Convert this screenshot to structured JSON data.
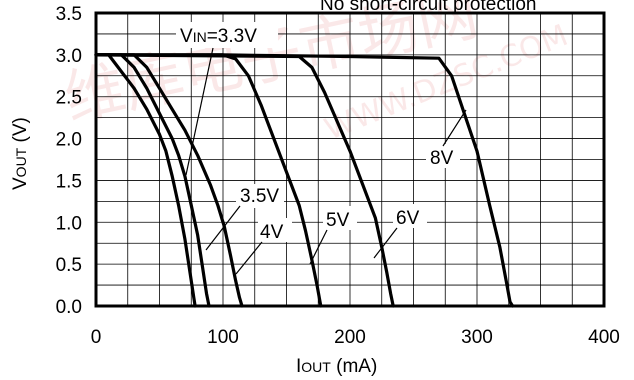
{
  "chart_data": {
    "type": "line",
    "annotation": "No short-circuit protection",
    "xlim": [
      0,
      400
    ],
    "ylim": [
      0,
      3.5
    ],
    "xticks": [
      0,
      100,
      200,
      300,
      400
    ],
    "xtick_labels": [
      "0",
      "100",
      "200",
      "300",
      "400"
    ],
    "yticks": [
      0,
      0.5,
      1.0,
      1.5,
      2.0,
      2.5,
      3.0,
      3.5
    ],
    "ytick_labels": [
      "0.0",
      "0.5",
      "1.0",
      "1.5",
      "2.0",
      "2.5",
      "3.0",
      "3.5"
    ],
    "xlabel": {
      "main": "I",
      "sub": "OUT",
      "rest": " (mA)"
    },
    "ylabel": {
      "main": "V",
      "sub": "OUT",
      "rest": " (V)"
    },
    "grid": true,
    "legend": "none",
    "series": [
      {
        "name": "VIN=3.3V",
        "label_parts": {
          "main": "V",
          "sub": "IN",
          "rest": "=3.3V"
        },
        "x": [
          0,
          10,
          20,
          30,
          40,
          50,
          55,
          60,
          65,
          70,
          74,
          77,
          78
        ],
        "y": [
          3.0,
          3.0,
          2.8,
          2.6,
          2.35,
          2.05,
          1.85,
          1.55,
          1.2,
          0.8,
          0.4,
          0.1,
          0.0
        ]
      },
      {
        "name": "3.5V",
        "x": [
          0,
          20,
          30,
          40,
          50,
          60,
          65,
          70,
          75,
          80,
          84,
          87,
          89
        ],
        "y": [
          3.0,
          3.0,
          2.85,
          2.6,
          2.3,
          2.0,
          1.8,
          1.55,
          1.2,
          0.85,
          0.45,
          0.15,
          0.0
        ]
      },
      {
        "name": "4V",
        "x": [
          0,
          30,
          40,
          50,
          60,
          70,
          80,
          90,
          96,
          101,
          106,
          110,
          113,
          115
        ],
        "y": [
          3.0,
          3.0,
          2.85,
          2.6,
          2.35,
          2.1,
          1.8,
          1.45,
          1.2,
          0.95,
          0.6,
          0.3,
          0.1,
          0.0
        ]
      },
      {
        "name": "5V",
        "x": [
          0,
          100,
          110,
          120,
          130,
          140,
          150,
          160,
          165,
          170,
          174,
          177
        ],
        "y": [
          3.0,
          3.0,
          2.95,
          2.75,
          2.4,
          2.0,
          1.6,
          1.2,
          0.9,
          0.55,
          0.25,
          0.0
        ]
      },
      {
        "name": "6V",
        "x": [
          0,
          160,
          170,
          180,
          190,
          200,
          210,
          220,
          225,
          229,
          232,
          234
        ],
        "y": [
          3.0,
          2.98,
          2.85,
          2.55,
          2.2,
          1.85,
          1.45,
          1.05,
          0.7,
          0.4,
          0.15,
          0.0
        ]
      },
      {
        "name": "8V",
        "x": [
          0,
          100,
          200,
          270,
          280,
          290,
          300,
          310,
          318,
          323,
          326,
          328
        ],
        "y": [
          3.0,
          3.0,
          2.98,
          2.96,
          2.75,
          2.3,
          1.85,
          1.2,
          0.7,
          0.3,
          0.05,
          0.0
        ]
      }
    ]
  },
  "watermark": {
    "text_latin": "WWW.DZSC.COM",
    "text_cjk": "维库电子市场网"
  }
}
